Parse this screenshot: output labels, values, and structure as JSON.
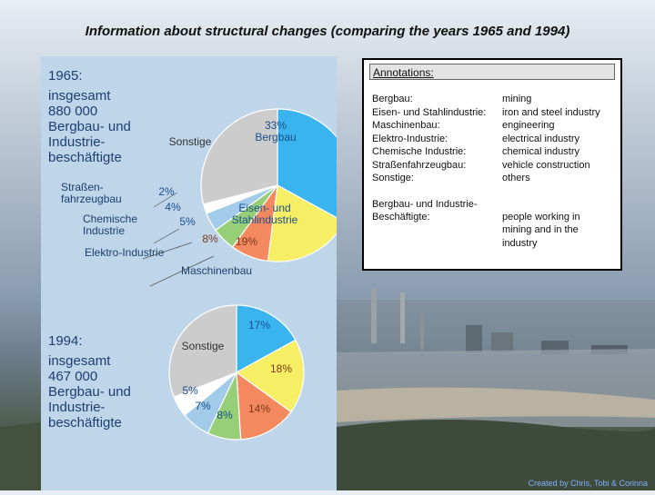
{
  "slide": {
    "title": "Information about structural changes (comparing  the years 1965 and 1994)",
    "credit": "Created by Chris, Tobi & Corinna"
  },
  "colors": {
    "sonstige": "#cccccc",
    "bergbau": "#39b4ef",
    "eisen": "#f6ee64",
    "maschinenbau": "#f4885f",
    "elektro": "#96cf78",
    "chemische": "#a2cbe9",
    "strassenfahrzeug": "#ffffff",
    "panel": "#bfd6ea"
  },
  "annotations": {
    "heading": "Annotations:",
    "rows": [
      {
        "de": "Bergbau:",
        "en": "mining"
      },
      {
        "de": "Eisen- und Stahlindustrie:",
        "en": "iron and steel industry"
      },
      {
        "de": "Maschinenbau:",
        "en": "engineering"
      },
      {
        "de": "Elektro-Industrie:",
        "en": "electrical industry"
      },
      {
        "de": "Chemische Industrie:",
        "en": "chemical industry"
      },
      {
        "de": "Straßenfahrzeugbau:",
        "en": "vehicle construction"
      },
      {
        "de": "Sonstige:",
        "en": "others"
      }
    ],
    "extra": {
      "de": "Bergbau- und Industrie-\nBeschäftigte:",
      "en": "people working in\nmining and in the\nindustry"
    }
  },
  "chart_data": [
    {
      "type": "pie",
      "year_label": "1965:",
      "caption_lines": [
        "insgesamt",
        "880 000",
        "Bergbau- und",
        "Industrie-",
        "beschäftigte"
      ],
      "slices": [
        {
          "name": "Bergbau",
          "label": "33%\nBergbau",
          "value": 33,
          "color_key": "bergbau"
        },
        {
          "name": "Eisen- und Stahlindustrie",
          "label": "19%",
          "outer_label": "Eisen- und\nStahlindustrie",
          "value": 19,
          "color_key": "eisen"
        },
        {
          "name": "Maschinenbau",
          "label": "8%",
          "outer_label": "Maschinenbau",
          "value": 8,
          "color_key": "maschinenbau"
        },
        {
          "name": "Elektro-Industrie",
          "label": "5%",
          "outer_label": "Elektro-Industrie",
          "value": 5,
          "color_key": "elektro"
        },
        {
          "name": "Chemische Industrie",
          "label": "4%",
          "outer_label": "Chemische\nIndustrie",
          "value": 4,
          "color_key": "chemische"
        },
        {
          "name": "Straßenfahrzeugbau",
          "label": "2%",
          "outer_label": "Straßen-\nfahrzeugbau",
          "value": 2,
          "color_key": "strassenfahrzeug"
        },
        {
          "name": "Sonstige",
          "label": "Sonstige",
          "value": 29,
          "color_key": "sonstige"
        }
      ]
    },
    {
      "type": "pie",
      "year_label": "1994:",
      "caption_lines": [
        "insgesamt",
        "467 000",
        "Bergbau- und",
        "Industrie-",
        "beschäftigte"
      ],
      "slices": [
        {
          "name": "Bergbau",
          "label": "17%",
          "value": 17,
          "color_key": "bergbau"
        },
        {
          "name": "Eisen- und Stahlindustrie",
          "label": "18%",
          "value": 18,
          "color_key": "eisen"
        },
        {
          "name": "Maschinenbau",
          "label": "14%",
          "value": 14,
          "color_key": "maschinenbau"
        },
        {
          "name": "Elektro-Industrie",
          "label": "8%",
          "value": 8,
          "color_key": "elektro"
        },
        {
          "name": "Chemische Industrie",
          "label": "7%",
          "value": 7,
          "color_key": "chemische"
        },
        {
          "name": "Straßenfahrzeugbau",
          "label": "5%",
          "value": 5,
          "color_key": "strassenfahrzeug"
        },
        {
          "name": "Sonstige",
          "label": "Sonstige",
          "value": 31,
          "color_key": "sonstige"
        }
      ]
    }
  ]
}
